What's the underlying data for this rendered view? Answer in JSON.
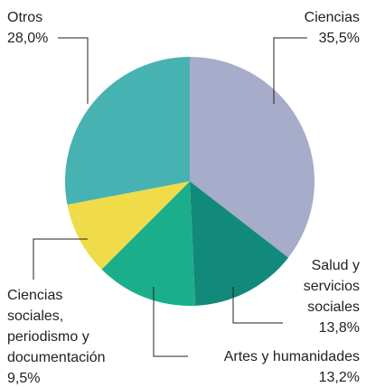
{
  "chart_data": {
    "type": "pie",
    "categories": [
      [
        "Ciencias"
      ],
      [
        "Salud y",
        "servicios",
        "sociales"
      ],
      [
        "Artes y humanidades"
      ],
      [
        "Ciencias",
        "sociales,",
        "periodismo y",
        "documentación"
      ],
      [
        "Otros"
      ]
    ],
    "values": [
      35.5,
      13.8,
      13.2,
      9.5,
      28.0
    ],
    "value_labels": [
      "35,5%",
      "13,8%",
      "13,2%",
      "9,5%",
      "28,0%"
    ],
    "colors": [
      "#a6acca",
      "#128a7b",
      "#1bae8a",
      "#f0dc49",
      "#46b2b1"
    ]
  }
}
